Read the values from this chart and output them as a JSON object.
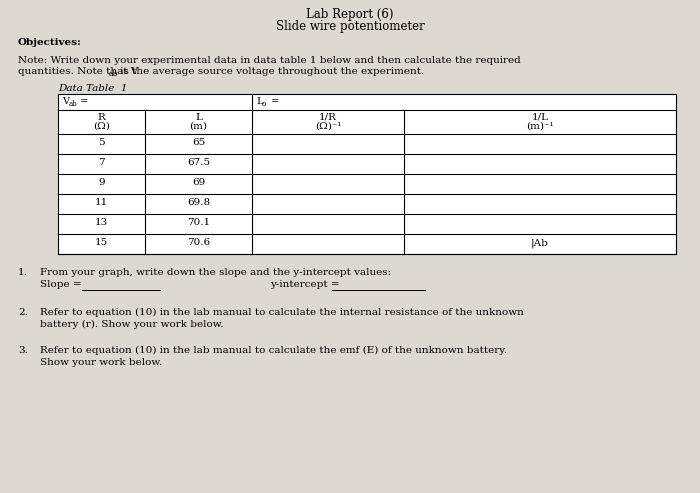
{
  "title_line1": "Lab Report (6)",
  "title_line2": "Slide wire potentiometer",
  "objectives_label": "Objectives:",
  "note_line1": "Note: Write down your experimental data in data table 1 below and then calculate the required",
  "note_line2_pre": "quantities. Note that V",
  "note_line2_sub": "ab",
  "note_line2_post": " is the average source voltage throughout the experiment.",
  "data_table_label": "Data Table  1",
  "r_values": [
    "5",
    "7",
    "9",
    "11",
    "13",
    "15"
  ],
  "l_values": [
    "65",
    "67.5",
    "69",
    "69.8",
    "70.1",
    "70.6"
  ],
  "last_cell_label": "|Ab",
  "q1_text": "From your graph, write down the slope and the y-intercept values:",
  "slope_label": "Slope = ",
  "yint_label": "y-intercept = ",
  "q2_text1": "Refer to equation (10) in the lab manual to calculate the internal resistance of the unknown",
  "q2_text2": "battery (r). Show your work below.",
  "q3_text1": "Refer to equation (10) in the lab manual to calculate the emf (E) of the unknown battery.",
  "q3_text2": "Show your work below.",
  "bg_color": "#ddd9d0"
}
